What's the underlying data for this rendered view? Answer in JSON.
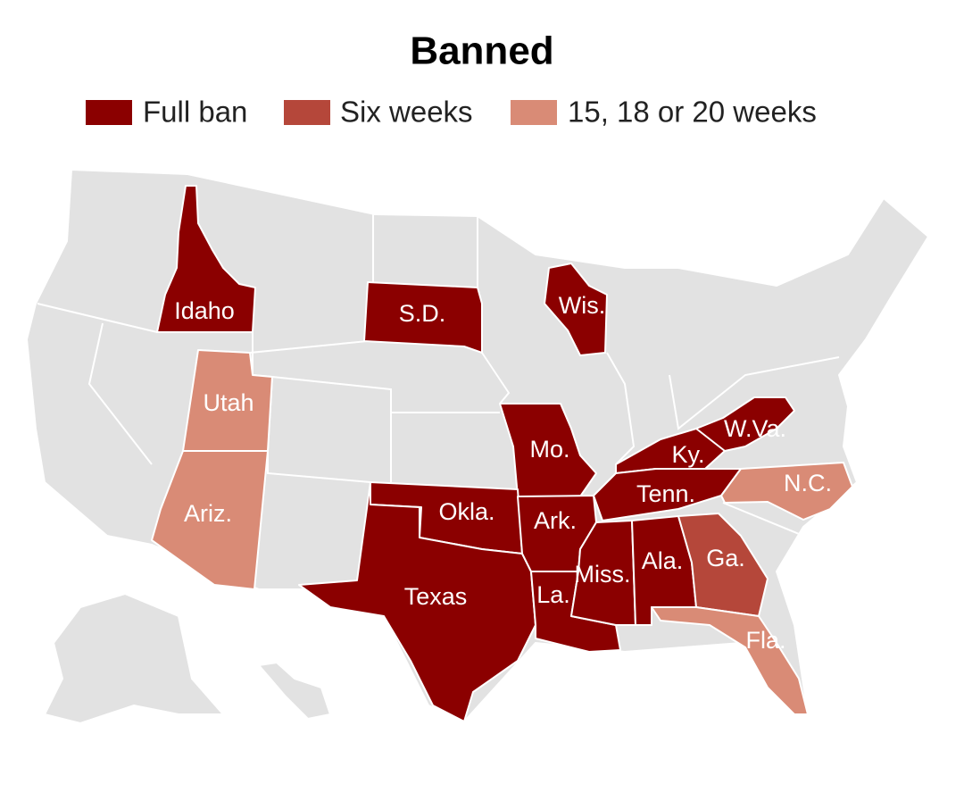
{
  "title": "Banned",
  "legend": [
    {
      "label": "Full ban",
      "color": "#8b0000",
      "states": [
        "Idaho",
        "S.D.",
        "Wis.",
        "Mo.",
        "Ky.",
        "W.Va.",
        "Tenn.",
        "Okla.",
        "Texas",
        "Ark.",
        "La.",
        "Miss.",
        "Ala."
      ]
    },
    {
      "label": "Six weeks",
      "color": "#b5473a",
      "states": [
        "Ga."
      ]
    },
    {
      "label": "15, 18 or 20 weeks",
      "color": "#d98b76",
      "states": [
        "Utah",
        "Ariz.",
        "N.C.",
        "Fla."
      ]
    }
  ]
}
